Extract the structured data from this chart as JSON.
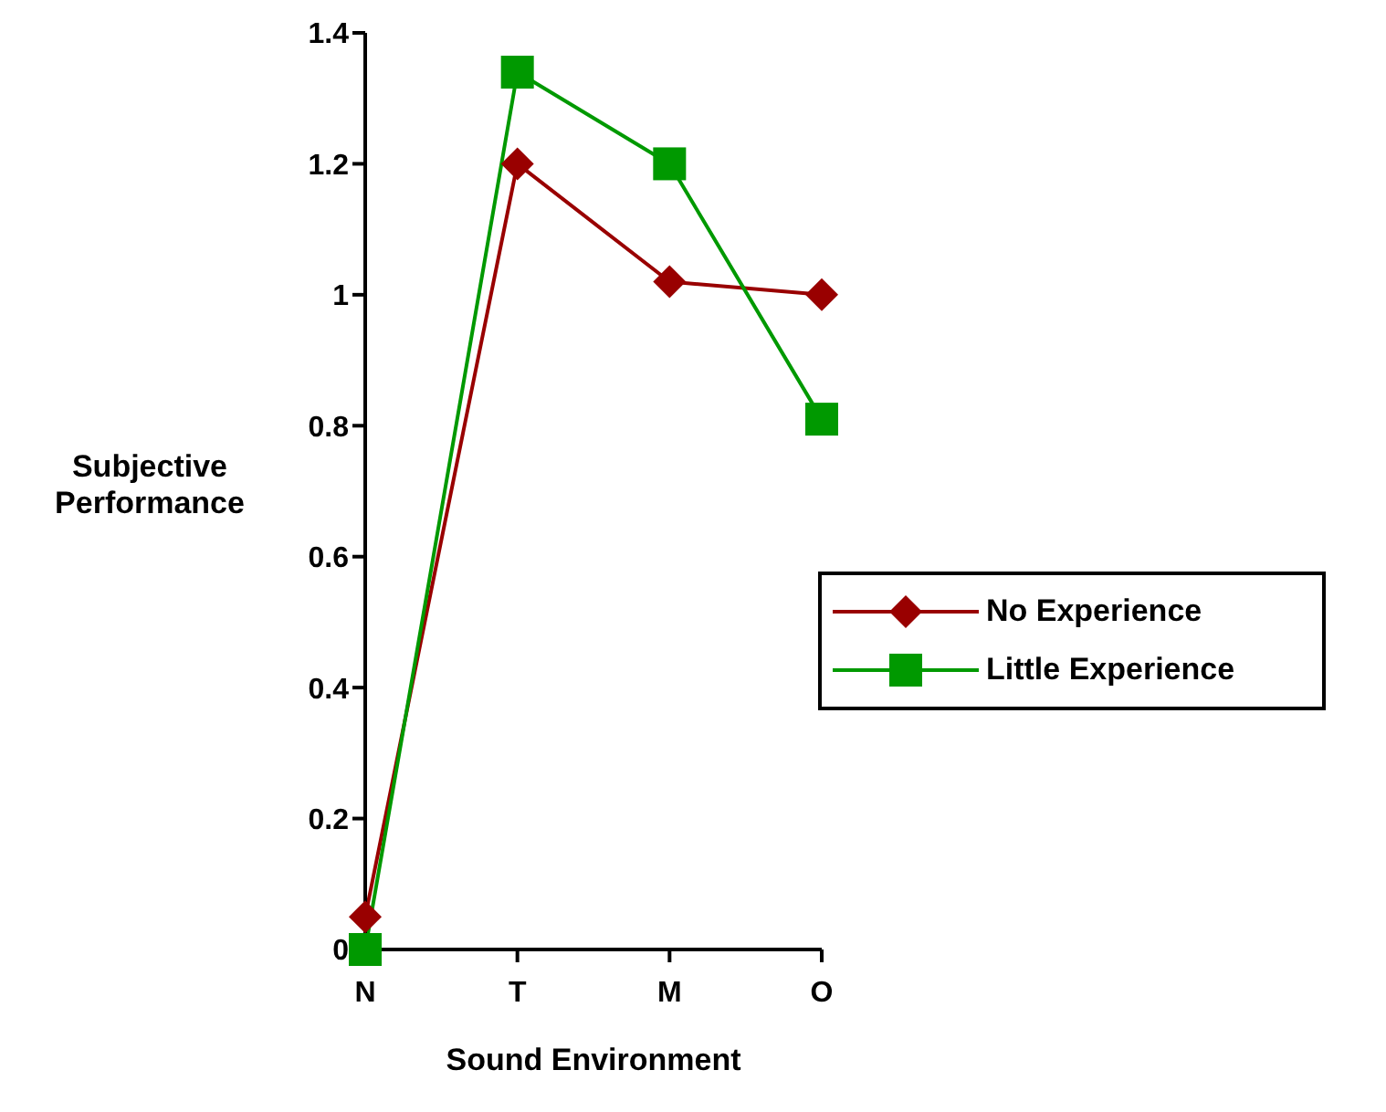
{
  "chart_data": {
    "type": "line",
    "xlabel": "Sound Environment",
    "ylabel": "Subjective Performance",
    "categories": [
      "N",
      "T",
      "M",
      "O"
    ],
    "ylim": [
      0,
      1.4
    ],
    "yticks": [
      0,
      0.2,
      0.4,
      0.6,
      0.8,
      1,
      1.2,
      1.4
    ],
    "grid": false,
    "legend": "right",
    "line_style": "solid",
    "series": [
      {
        "name": "No Experience",
        "color": "#990000",
        "marker": "diamond",
        "values": [
          0.05,
          1.2,
          1.02,
          1.0
        ]
      },
      {
        "name": "Little Experience",
        "color": "#009900",
        "marker": "square",
        "values": [
          0,
          1.34,
          1.2,
          0.81
        ]
      }
    ]
  }
}
